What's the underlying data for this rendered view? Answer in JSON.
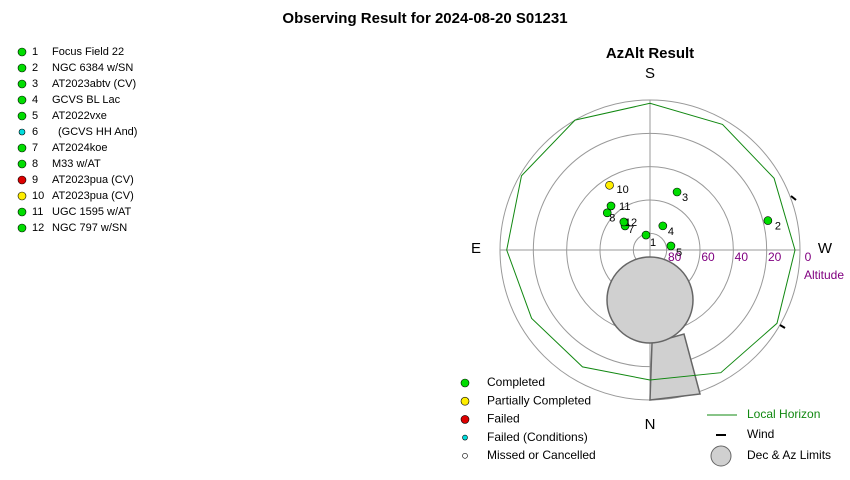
{
  "chart_data": {
    "type": "polar-scatter",
    "title": "Observing Result for 2024-08-20 S01231",
    "subtitle": "AzAlt Result",
    "directions": {
      "S": "S",
      "E": "E",
      "W": "W",
      "N": "N"
    },
    "radial_axis_label": "Altitude",
    "rlim": [
      90,
      0
    ],
    "rticks": [
      80,
      60,
      40,
      20,
      0
    ],
    "statuses": [
      {
        "name": "Completed",
        "color": "#00dd00",
        "size": "large"
      },
      {
        "name": "Partially Completed",
        "color": "#ffee00",
        "size": "large"
      },
      {
        "name": "Failed",
        "color": "#dd0000",
        "size": "large"
      },
      {
        "name": "Failed (Conditions)",
        "color": "#00dddd",
        "size": "small"
      },
      {
        "name": "Missed or Cancelled",
        "color": "#ffffff",
        "size": "small"
      }
    ],
    "targets": [
      {
        "id": 1,
        "name": "Focus Field 22",
        "status": 0,
        "az": 165,
        "alt": 80.7
      },
      {
        "id": 2,
        "name": "NGC 6384 w/SN",
        "status": 0,
        "az": 256,
        "alt": 17.1
      },
      {
        "id": 3,
        "name": "AT2023abtv (CV)",
        "status": 0,
        "az": 205,
        "alt": 51.6
      },
      {
        "id": 4,
        "name": "GCVS BL Lac",
        "status": 0,
        "az": 208,
        "alt": 73.6
      },
      {
        "id": 5,
        "name": "AT2022vxe",
        "status": 0,
        "az": 259,
        "alt": 77.2
      },
      {
        "id": 6,
        "name": "(GCVS HH And)",
        "status": 3,
        "az": null,
        "alt": null
      },
      {
        "id": 7,
        "name": "AT2024koe",
        "status": 0,
        "az": 134,
        "alt": 69.2
      },
      {
        "id": 8,
        "name": "M33 w/AT",
        "status": 0,
        "az": 131,
        "alt": 56
      },
      {
        "id": 9,
        "name": "AT2023pua (CV)",
        "status": 2,
        "az": null,
        "alt": null
      },
      {
        "id": 10,
        "name": "AT2023pua (CV)",
        "status": 1,
        "az": 148,
        "alt": 44.2
      },
      {
        "id": 11,
        "name": "UGC 1595 w/AT",
        "status": 0,
        "az": 138.5,
        "alt": 54.7
      },
      {
        "id": 12,
        "name": "NGC 797 w/SN",
        "status": 0,
        "az": 137,
        "alt": 67
      }
    ],
    "horizon": {
      "name": "Local Horizon",
      "color": "#118811",
      "az": [
        0,
        30,
        60,
        90,
        120,
        150,
        180,
        210,
        240,
        270,
        300,
        330
      ],
      "alt": [
        12,
        9,
        8,
        4,
        1,
        0,
        2,
        3,
        4,
        3,
        2,
        5
      ]
    },
    "wind_label": "Wind",
    "limits_label": "Dec & Az Limits"
  }
}
